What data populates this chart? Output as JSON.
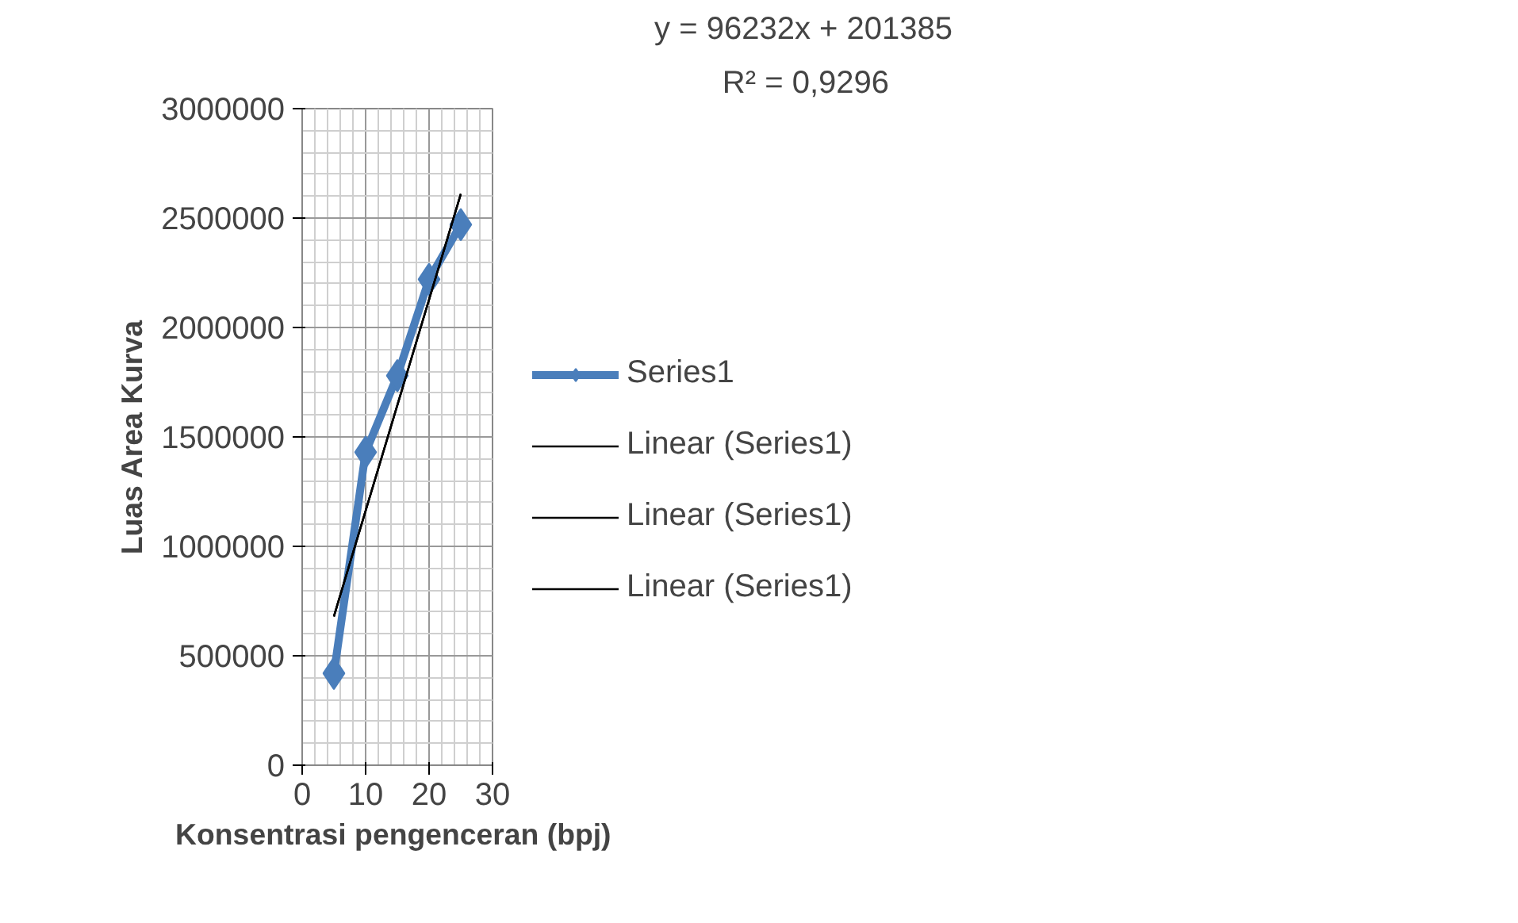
{
  "chart_data": {
    "type": "line",
    "xlabel": "Konsentrasi  pengenceran (bpj)",
    "ylabel": "Luas Area Kurva",
    "xlim": [
      0,
      30
    ],
    "xticks": [
      0,
      10,
      20,
      30
    ],
    "ylim": [
      0,
      3000000
    ],
    "yticks": [
      0,
      500000,
      1000000,
      1500000,
      2000000,
      2500000,
      3000000
    ],
    "grid": true,
    "legend": "right",
    "marker": "diamond",
    "line_style": "solid",
    "series": [
      {
        "name": "Series1",
        "color": "#4a7ebb",
        "x": [
          5,
          10,
          15,
          20,
          25
        ],
        "values": [
          420000,
          1430000,
          1780000,
          2220000,
          2470000
        ]
      },
      {
        "name": "Linear (Series1)",
        "color": "#000000",
        "x": [
          5,
          25
        ],
        "values": [
          680000,
          2610000
        ],
        "marker": "none"
      },
      {
        "name": "Linear (Series1)",
        "color": "#000000",
        "x": [
          5,
          25
        ],
        "values": [
          680000,
          2610000
        ],
        "marker": "none"
      },
      {
        "name": "Linear (Series1)",
        "color": "#000000",
        "x": [
          5,
          25
        ],
        "values": [
          680000,
          2610000
        ],
        "marker": "none"
      }
    ],
    "annotations": [
      "y = 96232x + 201385",
      "R² = 0,9296"
    ]
  }
}
